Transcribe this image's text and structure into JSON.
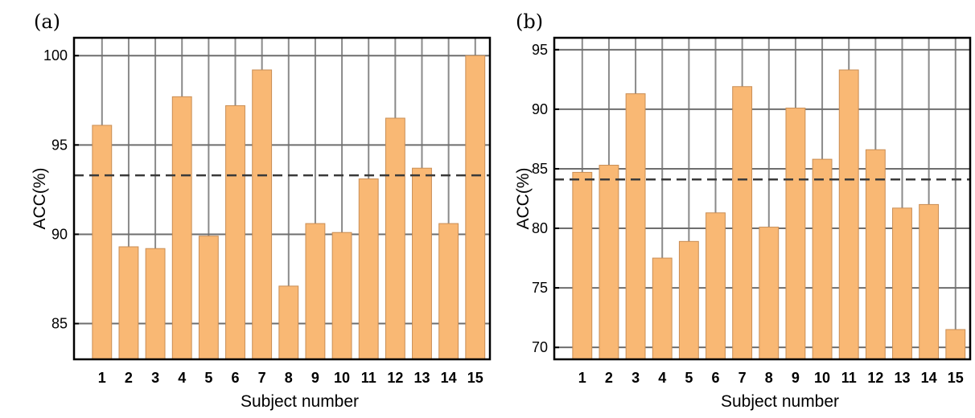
{
  "chart_data": [
    {
      "panel": "(a)",
      "type": "bar",
      "xlabel": "Subject number",
      "ylabel": "ACC(%)",
      "categories": [
        "1",
        "2",
        "3",
        "4",
        "5",
        "6",
        "7",
        "8",
        "9",
        "10",
        "11",
        "12",
        "13",
        "14",
        "15"
      ],
      "values": [
        96.1,
        89.3,
        89.2,
        97.7,
        89.9,
        97.2,
        99.2,
        87.1,
        90.6,
        90.1,
        93.1,
        96.5,
        93.7,
        90.6,
        100.0
      ],
      "mean_line": 93.3,
      "ylim": [
        83,
        101
      ],
      "yticks": [
        85,
        90,
        95,
        100
      ],
      "bar_color": "#f9b874",
      "grid": true
    },
    {
      "panel": "(b)",
      "type": "bar",
      "xlabel": "Subject number",
      "ylabel": "ACC(%)",
      "categories": [
        "1",
        "2",
        "3",
        "4",
        "5",
        "6",
        "7",
        "8",
        "9",
        "10",
        "11",
        "12",
        "13",
        "14",
        "15"
      ],
      "values": [
        84.7,
        85.3,
        91.3,
        77.5,
        78.9,
        81.3,
        91.9,
        80.1,
        90.1,
        85.8,
        93.3,
        86.6,
        81.7,
        82.0,
        71.5
      ],
      "mean_line": 84.1,
      "ylim": [
        69,
        96
      ],
      "yticks": [
        70,
        75,
        80,
        85,
        90,
        95
      ],
      "bar_color": "#f9b874",
      "grid": true
    }
  ]
}
